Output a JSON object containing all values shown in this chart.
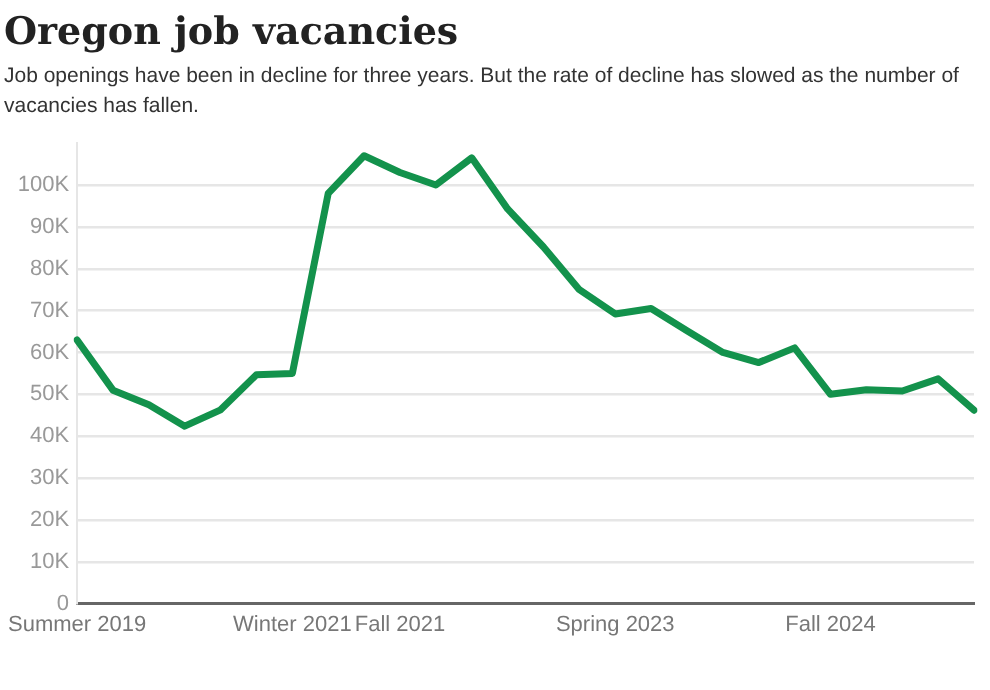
{
  "chart_data": {
    "type": "line",
    "title": "Oregon job vacancies",
    "subtitle": "Job openings have been in decline for three years. But the rate of decline has slowed as the number of vacancies has fallen.",
    "categories": [
      "Summer 2019",
      null,
      null,
      null,
      null,
      null,
      "Winter 2021",
      null,
      null,
      "Fall 2021",
      null,
      null,
      null,
      null,
      null,
      "Spring 2023",
      null,
      null,
      null,
      null,
      null,
      "Fall 2024",
      null,
      null,
      null,
      null
    ],
    "series": [
      {
        "color": "#13924c",
        "values": [
          63000,
          51000,
          47500,
          42400,
          46300,
          54700,
          55000,
          98000,
          107000,
          103000,
          100000,
          106500,
          94300,
          85200,
          75000,
          69200,
          70500,
          65200,
          60000,
          57600,
          61100,
          50000,
          51100,
          50800,
          53700,
          46200
        ]
      }
    ],
    "ylim": [
      0,
      110000
    ],
    "yticks": [
      {
        "value": 0,
        "label": "0"
      },
      {
        "value": 10000,
        "label": "10K"
      },
      {
        "value": 20000,
        "label": "20K"
      },
      {
        "value": 30000,
        "label": "30K"
      },
      {
        "value": 40000,
        "label": "40K"
      },
      {
        "value": 50000,
        "label": "50K"
      },
      {
        "value": 60000,
        "label": "60K"
      },
      {
        "value": 70000,
        "label": "70K"
      },
      {
        "value": 80000,
        "label": "80K"
      },
      {
        "value": 90000,
        "label": "90K"
      },
      {
        "value": 100000,
        "label": "100K"
      }
    ],
    "grid": "y",
    "legend": false,
    "marker": "none",
    "line_style": "solid"
  }
}
